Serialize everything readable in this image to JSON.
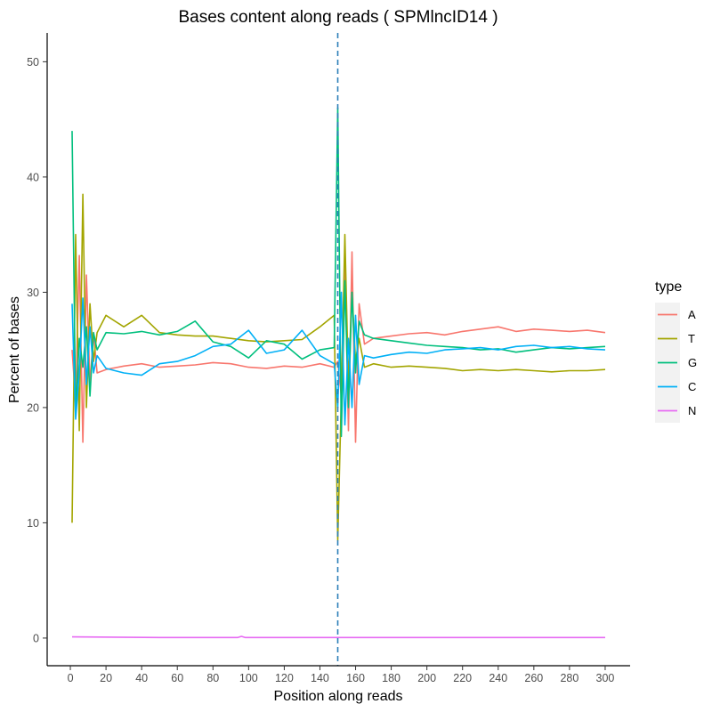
{
  "chart_data": {
    "type": "line",
    "title": "Bases content along reads ( SPMlncID14 )",
    "xlabel": "Position along reads",
    "ylabel": "Percent of bases",
    "xlim": [
      -13,
      314
    ],
    "ylim": [
      -2.4,
      52.5
    ],
    "xticks": [
      0,
      20,
      40,
      60,
      80,
      100,
      120,
      140,
      160,
      180,
      200,
      220,
      240,
      260,
      280,
      300
    ],
    "yticks": [
      0,
      10,
      20,
      30,
      40,
      50
    ],
    "grid": false,
    "legend_position": "right",
    "legend_title": "type",
    "vline": {
      "x": 150,
      "style": "dashed",
      "color": "#2c7fb8"
    },
    "series": [
      {
        "name": "A",
        "color": "#F8766D",
        "x": [
          1,
          3,
          5,
          7,
          9,
          11,
          13,
          15,
          20,
          30,
          40,
          50,
          60,
          70,
          80,
          90,
          100,
          110,
          120,
          130,
          140,
          148,
          150,
          152,
          154,
          156,
          158,
          160,
          162,
          165,
          170,
          180,
          190,
          200,
          210,
          220,
          230,
          240,
          250,
          260,
          270,
          280,
          290,
          300
        ],
        "y": [
          25,
          20.5,
          33.2,
          17,
          31.5,
          22,
          26.5,
          23,
          23.3,
          23.6,
          23.8,
          23.5,
          23.6,
          23.7,
          23.9,
          23.8,
          23.5,
          23.4,
          23.6,
          23.5,
          23.8,
          23.5,
          24,
          21,
          33,
          18,
          33.5,
          17,
          29,
          25.5,
          26,
          26.2,
          26.4,
          26.5,
          26.3,
          26.6,
          26.8,
          27,
          26.6,
          26.8,
          26.7,
          26.6,
          26.7,
          26.5
        ]
      },
      {
        "name": "T",
        "color": "#A3A500",
        "x": [
          1,
          3,
          5,
          7,
          9,
          11,
          13,
          15,
          20,
          30,
          40,
          50,
          60,
          70,
          80,
          90,
          100,
          110,
          120,
          130,
          140,
          148,
          150,
          152,
          154,
          156,
          158,
          160,
          162,
          165,
          170,
          180,
          190,
          200,
          210,
          220,
          230,
          240,
          250,
          260,
          270,
          280,
          290,
          300
        ],
        "y": [
          10,
          35,
          18,
          38.5,
          20,
          29,
          24,
          26.5,
          28,
          27,
          28,
          26.5,
          26.3,
          26.2,
          26.2,
          26,
          25.8,
          25.7,
          25.8,
          25.9,
          27,
          28,
          8.5,
          21,
          35,
          22,
          30,
          24,
          26,
          23.5,
          23.8,
          23.5,
          23.6,
          23.5,
          23.4,
          23.2,
          23.3,
          23.2,
          23.3,
          23.2,
          23.1,
          23.2,
          23.2,
          23.3
        ]
      },
      {
        "name": "G",
        "color": "#00BF7D",
        "x": [
          1,
          3,
          5,
          7,
          9,
          11,
          13,
          15,
          20,
          30,
          40,
          50,
          60,
          70,
          80,
          90,
          100,
          110,
          120,
          130,
          140,
          148,
          150,
          152,
          154,
          156,
          158,
          160,
          162,
          165,
          170,
          180,
          190,
          200,
          210,
          220,
          230,
          240,
          250,
          260,
          270,
          280,
          290,
          300
        ],
        "y": [
          44,
          19.5,
          26,
          23.5,
          27,
          21,
          26.5,
          25,
          26.5,
          26.4,
          26.6,
          26.3,
          26.6,
          27.5,
          25.7,
          25.3,
          24.3,
          25.8,
          25.5,
          24.2,
          25,
          25.2,
          46,
          17.5,
          31,
          20,
          30,
          23,
          27.5,
          26.3,
          26,
          25.8,
          25.6,
          25.4,
          25.3,
          25.2,
          25,
          25.1,
          24.8,
          25,
          25.2,
          25.1,
          25.2,
          25.3
        ]
      },
      {
        "name": "C",
        "color": "#00B0F6",
        "x": [
          1,
          3,
          5,
          7,
          9,
          11,
          13,
          15,
          20,
          30,
          40,
          50,
          60,
          70,
          80,
          90,
          100,
          110,
          120,
          130,
          140,
          148,
          150,
          152,
          154,
          156,
          158,
          160,
          162,
          165,
          170,
          180,
          190,
          200,
          210,
          220,
          230,
          240,
          250,
          260,
          270,
          280,
          290,
          300
        ],
        "y": [
          29,
          19,
          23,
          29.5,
          22,
          27,
          23,
          24.5,
          23.4,
          23,
          22.8,
          23.8,
          24,
          24.5,
          25.3,
          25.5,
          26.7,
          24.7,
          25,
          26.7,
          24.5,
          23.8,
          20,
          30,
          18.5,
          26,
          20,
          28,
          22,
          24.5,
          24.3,
          24.6,
          24.8,
          24.7,
          25,
          25.1,
          25.2,
          25,
          25.3,
          25.4,
          25.2,
          25.3,
          25.1,
          25
        ]
      },
      {
        "name": "N",
        "color": "#E76BF3",
        "x": [
          1,
          50,
          94,
          96,
          98,
          150,
          300
        ],
        "y": [
          0.1,
          0.05,
          0.05,
          0.15,
          0.05,
          0.05,
          0.05
        ]
      }
    ]
  }
}
